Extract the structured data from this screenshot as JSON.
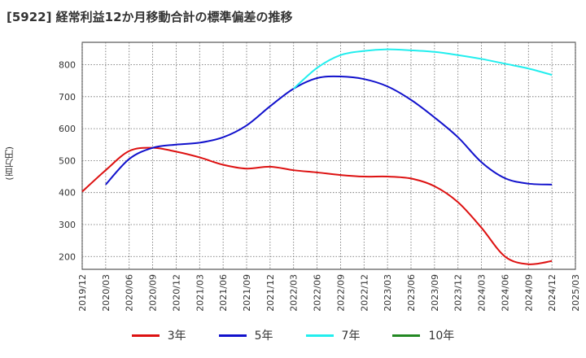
{
  "title": "[5922]  経常利益12か月移動合計の標準偏差の推移",
  "ylabel": "(百万円)",
  "chart_data": {
    "type": "line",
    "title": "[5922]  経常利益12か月移動合計の標準偏差の推移",
    "ylabel": "(百万円)",
    "xlabel": "",
    "ylim": [
      160,
      870
    ],
    "yticks": [
      200,
      300,
      400,
      500,
      600,
      700,
      800
    ],
    "xticks": [
      "2019/12",
      "2020/03",
      "2020/06",
      "2020/09",
      "2020/12",
      "2021/03",
      "2021/06",
      "2021/09",
      "2021/12",
      "2022/03",
      "2022/06",
      "2022/09",
      "2022/12",
      "2023/03",
      "2023/06",
      "2023/09",
      "2023/12",
      "2024/03",
      "2024/06",
      "2024/09",
      "2024/12",
      "2025/03"
    ],
    "grid": true,
    "legend_position": "bottom",
    "series": [
      {
        "name": "3年",
        "color": "#dd1111",
        "points": [
          [
            "2019/12",
            403
          ],
          [
            "2020/03",
            470
          ],
          [
            "2020/06",
            530
          ],
          [
            "2020/09",
            540
          ],
          [
            "2020/12",
            528
          ],
          [
            "2021/03",
            510
          ],
          [
            "2021/06",
            487
          ],
          [
            "2021/09",
            475
          ],
          [
            "2021/12",
            481
          ],
          [
            "2022/03",
            470
          ],
          [
            "2022/06",
            463
          ],
          [
            "2022/09",
            455
          ],
          [
            "2022/12",
            450
          ],
          [
            "2023/03",
            450
          ],
          [
            "2023/06",
            444
          ],
          [
            "2023/09",
            420
          ],
          [
            "2023/12",
            370
          ],
          [
            "2024/03",
            290
          ],
          [
            "2024/06",
            200
          ],
          [
            "2024/09",
            176
          ],
          [
            "2024/12",
            186
          ]
        ]
      },
      {
        "name": "5年",
        "color": "#1111cc",
        "points": [
          [
            "2020/03",
            425
          ],
          [
            "2020/06",
            505
          ],
          [
            "2020/09",
            540
          ],
          [
            "2020/12",
            550
          ],
          [
            "2021/03",
            556
          ],
          [
            "2021/06",
            573
          ],
          [
            "2021/09",
            610
          ],
          [
            "2021/12",
            670
          ],
          [
            "2022/03",
            725
          ],
          [
            "2022/06",
            758
          ],
          [
            "2022/09",
            763
          ],
          [
            "2022/12",
            755
          ],
          [
            "2023/03",
            732
          ],
          [
            "2023/06",
            690
          ],
          [
            "2023/09",
            635
          ],
          [
            "2023/12",
            573
          ],
          [
            "2024/03",
            495
          ],
          [
            "2024/06",
            445
          ],
          [
            "2024/09",
            428
          ],
          [
            "2024/12",
            425
          ]
        ]
      },
      {
        "name": "7年",
        "color": "#22eeee",
        "points": [
          [
            "2022/03",
            725
          ],
          [
            "2022/06",
            790
          ],
          [
            "2022/09",
            830
          ],
          [
            "2022/12",
            843
          ],
          [
            "2023/03",
            848
          ],
          [
            "2023/06",
            845
          ],
          [
            "2023/09",
            840
          ],
          [
            "2023/12",
            830
          ],
          [
            "2024/03",
            818
          ],
          [
            "2024/06",
            803
          ],
          [
            "2024/09",
            788
          ],
          [
            "2024/12",
            768
          ]
        ]
      },
      {
        "name": "10年",
        "color": "#228822",
        "points": []
      }
    ]
  }
}
